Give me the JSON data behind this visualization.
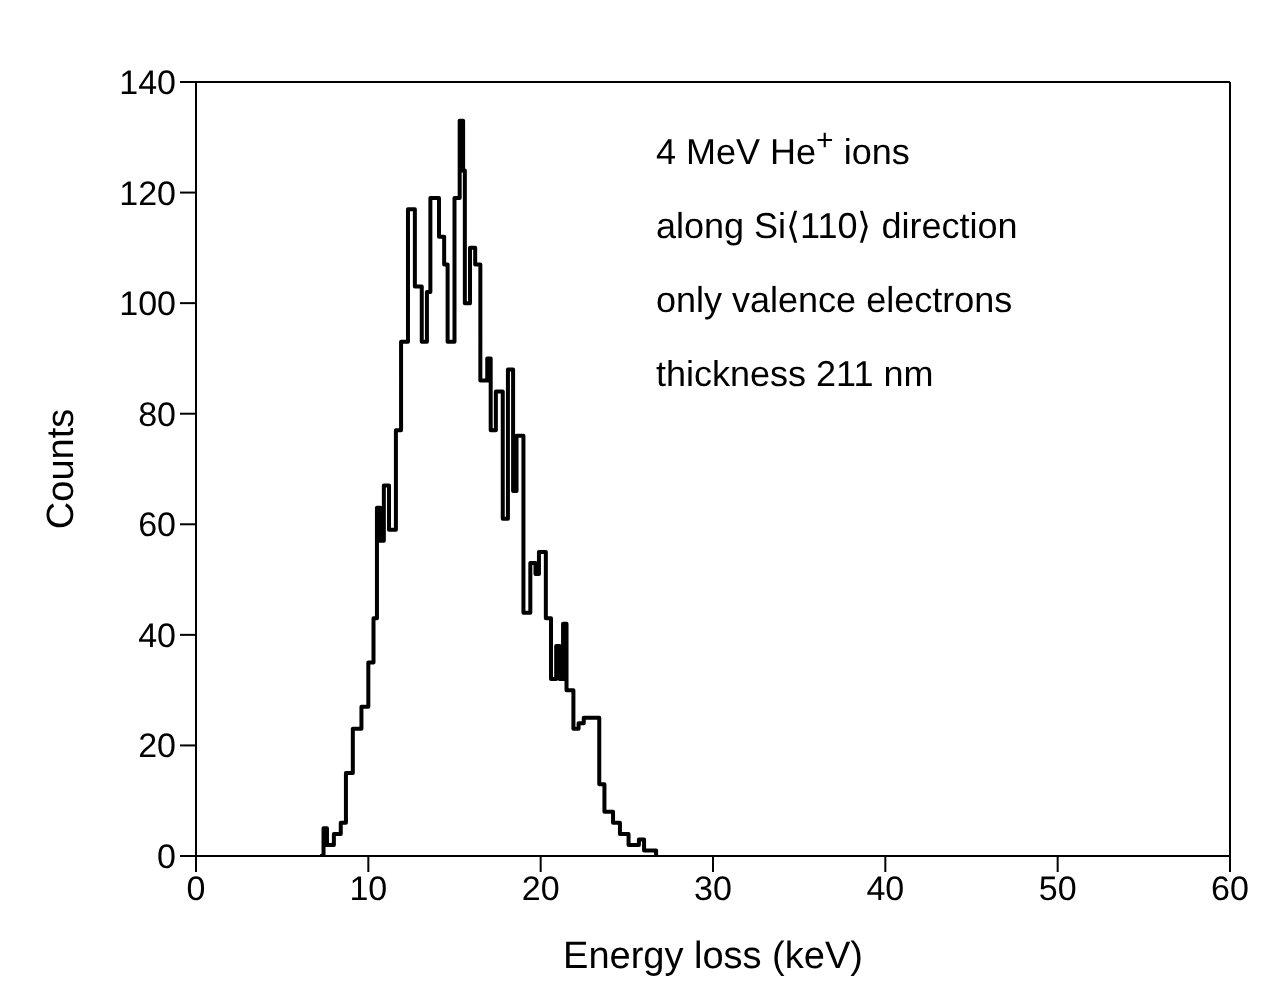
{
  "chart_data": {
    "type": "step",
    "xlabel": "Energy loss (keV)",
    "ylabel": "Counts",
    "xlim": [
      0,
      60
    ],
    "ylim": [
      0,
      140
    ],
    "xticks": [
      0,
      10,
      20,
      30,
      40,
      50,
      60
    ],
    "yticks": [
      0,
      20,
      40,
      60,
      80,
      100,
      120,
      140
    ],
    "color": "#000000",
    "annotations": [
      "4 MeV He$^{+}$ ions",
      "along Si⟨110⟩ direction",
      "only valence electrons",
      "thickness 211 nm"
    ],
    "x": [
      7.2,
      7.4,
      7.6,
      8.0,
      8.4,
      8.7,
      9.1,
      9.6,
      10.0,
      10.3,
      10.5,
      10.7,
      10.9,
      11.2,
      11.6,
      11.9,
      12.3,
      12.7,
      13.1,
      13.4,
      13.6,
      14.1,
      14.4,
      14.6,
      15.0,
      15.3,
      15.5,
      15.6,
      15.9,
      16.2,
      16.5,
      16.9,
      17.1,
      17.4,
      17.8,
      18.1,
      18.4,
      18.6,
      19.0,
      19.4,
      19.7,
      19.9,
      20.3,
      20.6,
      20.9,
      21.1,
      21.3,
      21.5,
      21.9,
      22.2,
      22.5,
      23.1,
      23.4,
      23.7,
      24.2,
      24.6,
      25.1,
      25.7,
      26.0,
      26.7
    ],
    "values": [
      0,
      5,
      2,
      4,
      6,
      15,
      23,
      27,
      35,
      43,
      63,
      57,
      67,
      59,
      77,
      93,
      117,
      103,
      93,
      102,
      119,
      112,
      107,
      93,
      119,
      133,
      124,
      100,
      110,
      107,
      86,
      90,
      77,
      84,
      61,
      88,
      66,
      76,
      44,
      53,
      51,
      55,
      43,
      32,
      38,
      32,
      42,
      30,
      23,
      24,
      25,
      25,
      13,
      8,
      6,
      4,
      2,
      3,
      1,
      0
    ]
  }
}
